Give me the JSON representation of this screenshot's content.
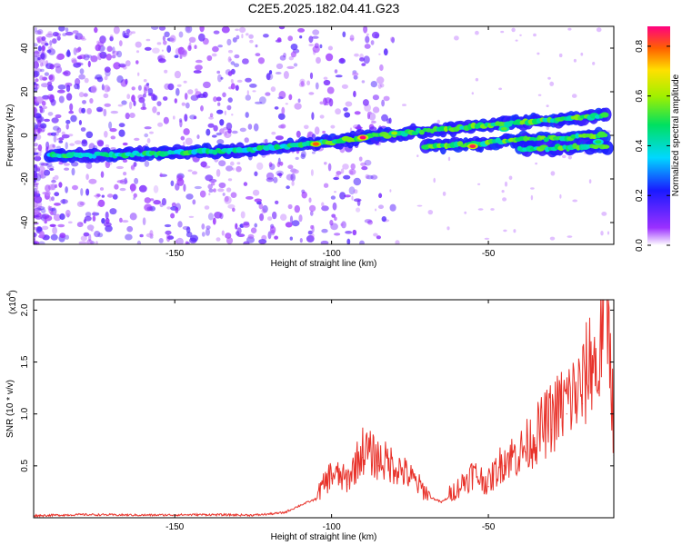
{
  "title": "C2E5.2025.182.04.41.G23",
  "chart_data": [
    {
      "type": "heatmap",
      "xlabel": "Height of straight line (km)",
      "ylabel": "Frequency (Hz)",
      "xlim": [
        -195,
        -10
      ],
      "ylim": [
        -50,
        50
      ],
      "xticks": [
        -150,
        -100,
        -50
      ],
      "yticks": [
        -40,
        -20,
        0,
        20,
        40
      ],
      "colorbar": {
        "label": "Normalized spectral amplitude",
        "range": [
          0,
          0.88
        ],
        "ticks": [
          0,
          0.2,
          0.4,
          0.6,
          0.8
        ]
      },
      "ridges": [
        {
          "x": [
            -190,
            -170,
            -150,
            -130,
            -115,
            -100,
            -85,
            -70,
            -55,
            -40,
            -20,
            -12
          ],
          "y": [
            -9,
            -9,
            -8,
            -7,
            -5,
            -3,
            0,
            2,
            4,
            6,
            8,
            9
          ]
        },
        {
          "x": [
            -70,
            -55,
            -40,
            -25,
            -12
          ],
          "y": [
            -5,
            -4,
            -2,
            -1,
            0
          ]
        },
        {
          "x": [
            -40,
            -30,
            -20,
            -12
          ],
          "y": [
            -6,
            -6,
            -5,
            -5
          ]
        }
      ],
      "peaks": [
        {
          "x": -90,
          "y": -1,
          "amplitude": 0.88
        },
        {
          "x": -55,
          "y": -5,
          "amplitude": 0.85
        },
        {
          "x": -105,
          "y": -4,
          "amplitude": 0.8
        },
        {
          "x": -80,
          "y": 1,
          "amplitude": 0.6
        },
        {
          "x": -45,
          "y": 3,
          "amplitude": 0.55
        },
        {
          "x": -15,
          "y": -3,
          "amplitude": 0.5
        }
      ]
    },
    {
      "type": "line",
      "xlabel": "Height of straight line (km)",
      "ylabel": "SNR (10 * v/v)",
      "scale_label": "(x10",
      "scale_exp": "4",
      "xlim": [
        -195,
        -10
      ],
      "ylim": [
        0,
        21000
      ],
      "xticks": [
        -150,
        -100,
        -50
      ],
      "yticks": [
        5000,
        10000,
        15000,
        20000
      ],
      "ytick_labels": [
        "0.5",
        "1.0",
        "1.5",
        "2.0"
      ],
      "color": "#e8322a",
      "series": [
        {
          "x": [
            -195,
            -180,
            -160,
            -140,
            -125,
            -120,
            -115,
            -110,
            -105,
            -100,
            -95,
            -90,
            -85,
            -80,
            -75,
            -70,
            -65,
            -60,
            -55,
            -50,
            -45,
            -40,
            -35,
            -30,
            -25,
            -20,
            -17,
            -15,
            -13,
            -11,
            -10
          ],
          "y": [
            200,
            300,
            250,
            300,
            250,
            350,
            500,
            1200,
            1800,
            3800,
            3200,
            5800,
            5000,
            4500,
            3500,
            2200,
            1500,
            2500,
            3800,
            3000,
            5000,
            5500,
            7000,
            8500,
            10000,
            11000,
            14000,
            12000,
            21000,
            15000,
            6000
          ]
        }
      ]
    }
  ]
}
